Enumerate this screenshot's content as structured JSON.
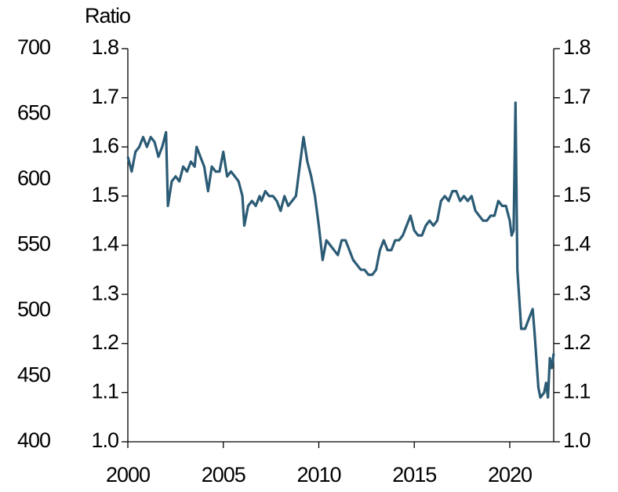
{
  "chart_data": {
    "type": "line",
    "y_axis_label": "Ratio",
    "x": [
      2000.0,
      2000.2,
      2000.4,
      2000.6,
      2000.8,
      2001.0,
      2001.2,
      2001.4,
      2001.6,
      2001.8,
      2002.0,
      2002.1,
      2002.3,
      2002.5,
      2002.7,
      2002.9,
      2003.1,
      2003.3,
      2003.5,
      2003.6,
      2003.8,
      2004.0,
      2004.2,
      2004.4,
      2004.6,
      2004.8,
      2005.0,
      2005.2,
      2005.4,
      2005.6,
      2005.8,
      2006.0,
      2006.1,
      2006.3,
      2006.5,
      2006.7,
      2006.9,
      2007.0,
      2007.2,
      2007.4,
      2007.6,
      2007.8,
      2008.0,
      2008.2,
      2008.4,
      2008.6,
      2008.8,
      2009.0,
      2009.2,
      2009.4,
      2009.6,
      2009.8,
      2010.0,
      2010.2,
      2010.4,
      2010.6,
      2010.8,
      2011.0,
      2011.2,
      2011.4,
      2011.6,
      2011.8,
      2012.0,
      2012.2,
      2012.4,
      2012.6,
      2012.8,
      2013.0,
      2013.2,
      2013.4,
      2013.6,
      2013.8,
      2014.0,
      2014.2,
      2014.4,
      2014.6,
      2014.8,
      2015.0,
      2015.2,
      2015.4,
      2015.6,
      2015.8,
      2016.0,
      2016.2,
      2016.4,
      2016.6,
      2016.8,
      2017.0,
      2017.2,
      2017.4,
      2017.6,
      2017.8,
      2018.0,
      2018.2,
      2018.4,
      2018.6,
      2018.8,
      2019.0,
      2019.2,
      2019.4,
      2019.6,
      2019.8,
      2020.0,
      2020.1,
      2020.2,
      2020.3,
      2020.4,
      2020.6,
      2020.8,
      2021.0,
      2021.2,
      2021.3,
      2021.5,
      2021.6,
      2021.8,
      2021.9,
      2022.0,
      2022.1,
      2022.2,
      2022.3
    ],
    "series": [
      {
        "color": "#2b5b75",
        "values": [
          1.58,
          1.55,
          1.59,
          1.6,
          1.62,
          1.6,
          1.62,
          1.61,
          1.58,
          1.6,
          1.63,
          1.48,
          1.53,
          1.54,
          1.53,
          1.56,
          1.55,
          1.57,
          1.56,
          1.6,
          1.58,
          1.56,
          1.51,
          1.56,
          1.55,
          1.55,
          1.59,
          1.54,
          1.55,
          1.54,
          1.53,
          1.5,
          1.44,
          1.48,
          1.49,
          1.48,
          1.5,
          1.49,
          1.51,
          1.5,
          1.5,
          1.49,
          1.47,
          1.5,
          1.48,
          1.49,
          1.5,
          1.56,
          1.62,
          1.57,
          1.54,
          1.5,
          1.44,
          1.37,
          1.41,
          1.4,
          1.39,
          1.38,
          1.41,
          1.41,
          1.39,
          1.37,
          1.36,
          1.35,
          1.35,
          1.34,
          1.34,
          1.35,
          1.39,
          1.41,
          1.39,
          1.39,
          1.41,
          1.41,
          1.42,
          1.44,
          1.46,
          1.43,
          1.42,
          1.42,
          1.44,
          1.45,
          1.44,
          1.45,
          1.49,
          1.5,
          1.49,
          1.51,
          1.51,
          1.49,
          1.5,
          1.49,
          1.5,
          1.47,
          1.46,
          1.45,
          1.45,
          1.46,
          1.46,
          1.49,
          1.48,
          1.48,
          1.45,
          1.42,
          1.43,
          1.69,
          1.35,
          1.23,
          1.23,
          1.25,
          1.27,
          1.22,
          1.11,
          1.09,
          1.1,
          1.12,
          1.09,
          1.17,
          1.15,
          1.18
        ]
      }
    ],
    "xlim": [
      2000,
      2022.3
    ],
    "xticks": [
      2000,
      2005,
      2010,
      2015,
      2020
    ],
    "ylim": [
      1.0,
      1.8
    ],
    "yticks": [
      {
        "value": 1,
        "label": "1.0"
      },
      1.1,
      1.2,
      1.3,
      1.4,
      1.5,
      1.6,
      1.7,
      1.8
    ],
    "y2lim": [
      1.0,
      1.8
    ],
    "y2ticks": [
      {
        "value": 1,
        "label": "1.0"
      },
      1.1,
      1.2,
      1.3,
      1.4,
      1.5,
      1.6,
      1.7,
      1.8
    ],
    "y3lim": [
      400,
      700
    ],
    "y3ticks": [
      400,
      450,
      500,
      550,
      600,
      650,
      700
    ]
  }
}
